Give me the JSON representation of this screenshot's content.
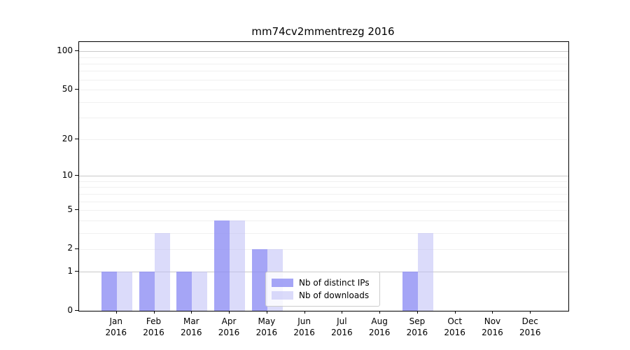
{
  "chart_data": {
    "type": "bar",
    "title": "mm74cv2mmentrezg 2016",
    "categories": [
      "Jan",
      "Feb",
      "Mar",
      "Apr",
      "May",
      "Jun",
      "Jul",
      "Aug",
      "Sep",
      "Oct",
      "Nov",
      "Dec"
    ],
    "category_year": "2016",
    "series": [
      {
        "name": "Nb of distinct IPs",
        "color": "rgba(140,140,244,0.78)",
        "values": [
          1,
          1,
          1,
          4,
          2,
          0,
          0,
          0,
          1,
          0,
          0,
          0
        ]
      },
      {
        "name": "Nb of downloads",
        "color": "rgba(189,189,246,0.55)",
        "values": [
          1,
          3,
          1,
          4,
          2,
          0,
          0,
          0,
          3,
          0,
          0,
          0
        ]
      }
    ],
    "yticks": [
      0,
      1,
      2,
      5,
      10,
      20,
      50,
      100
    ],
    "y_major_ticks": [
      1,
      10,
      100
    ],
    "y_minor_gridlines": [
      2,
      3,
      4,
      5,
      6,
      7,
      8,
      9,
      20,
      30,
      40,
      50,
      60,
      70,
      80,
      90
    ],
    "scale": "log1p",
    "ylim": [
      0,
      118
    ],
    "xlabel": "",
    "ylabel": "",
    "grid": "horizontal",
    "legend_position": "inside-lower-center",
    "colors": {
      "axis": "#000000",
      "major_grid": "#c9c9c9",
      "minor_grid": "#f0f0f0"
    }
  }
}
